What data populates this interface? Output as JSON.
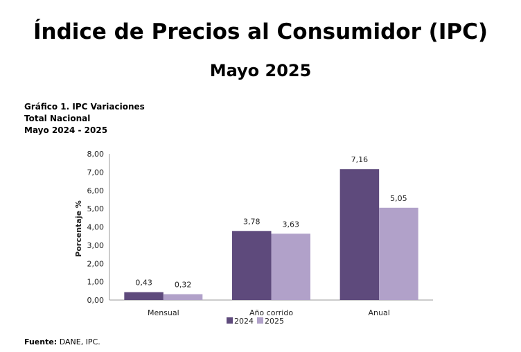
{
  "header": {
    "title": "Índice de Precios al Consumidor (IPC)",
    "subtitle": "Mayo 2025"
  },
  "caption": {
    "line1": "Gráfico 1. IPC Variaciones",
    "line2": "Total Nacional",
    "line3": "Mayo 2024 - 2025"
  },
  "footer": {
    "source_label": "Fuente:",
    "source_text": " DANE, IPC."
  },
  "chart_data": {
    "type": "bar",
    "categories": [
      "Mensual",
      "Año corrido",
      "Anual"
    ],
    "series": [
      {
        "name": "2024",
        "values": [
          0.43,
          3.78,
          7.16
        ],
        "labels": [
          "0,43",
          "3,78",
          "7,16"
        ],
        "color": "#5e4a7c"
      },
      {
        "name": "2025",
        "values": [
          0.32,
          3.63,
          5.05
        ],
        "labels": [
          "0,32",
          "3,63",
          "5,05"
        ],
        "color": "#b1a1c9"
      }
    ],
    "ylabel": "Porcentaje %",
    "xlabel": "",
    "ylim": [
      0,
      8
    ],
    "yticks": [
      "0,00",
      "1,00",
      "2,00",
      "3,00",
      "4,00",
      "5,00",
      "6,00",
      "7,00",
      "8,00"
    ],
    "grid": false,
    "legend": "bottom"
  }
}
